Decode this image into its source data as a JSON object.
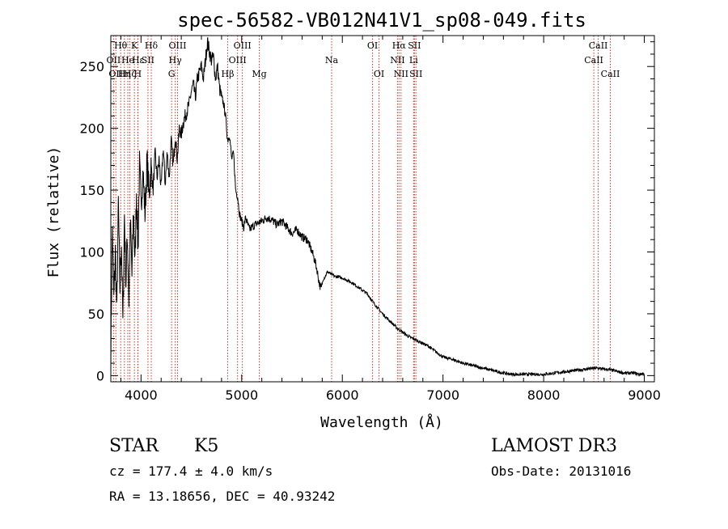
{
  "chart_data": {
    "type": "line",
    "title": "spec-56582-VB012N41V1_sp08-049.fits",
    "xlabel": "Wavelength (Å)",
    "ylabel": "Flux (relative)",
    "xlim": [
      3700,
      9100
    ],
    "ylim": [
      -5,
      275
    ],
    "x_ticks": [
      {
        "value": 4000,
        "label": "4000"
      },
      {
        "value": 5000,
        "label": "5000"
      },
      {
        "value": 6000,
        "label": "6000"
      },
      {
        "value": 7000,
        "label": "7000"
      },
      {
        "value": 8000,
        "label": "8000"
      },
      {
        "value": 9000,
        "label": "9000"
      }
    ],
    "y_ticks": [
      {
        "value": 0,
        "label": "0"
      },
      {
        "value": 50,
        "label": "50"
      },
      {
        "value": 100,
        "label": "100"
      },
      {
        "value": 150,
        "label": "150"
      },
      {
        "value": 200,
        "label": "200"
      },
      {
        "value": 250,
        "label": "250"
      }
    ],
    "series": [
      {
        "name": "flux",
        "x": [
          3700,
          3715,
          3730,
          3745,
          3760,
          3775,
          3790,
          3805,
          3820,
          3835,
          3850,
          3865,
          3880,
          3895,
          3910,
          3925,
          3940,
          3955,
          3970,
          3985,
          4000,
          4020,
          4040,
          4060,
          4080,
          4100,
          4120,
          4140,
          4160,
          4180,
          4200,
          4220,
          4240,
          4260,
          4280,
          4300,
          4320,
          4340,
          4360,
          4380,
          4400,
          4420,
          4440,
          4460,
          4480,
          4500,
          4520,
          4540,
          4560,
          4580,
          4600,
          4620,
          4640,
          4660,
          4680,
          4700,
          4720,
          4740,
          4760,
          4780,
          4800,
          4820,
          4840,
          4860,
          4880,
          4900,
          4920,
          4940,
          4960,
          4980,
          5000,
          5020,
          5040,
          5060,
          5080,
          5100,
          5150,
          5200,
          5250,
          5300,
          5350,
          5400,
          5450,
          5500,
          5550,
          5600,
          5650,
          5700,
          5730,
          5750,
          5770,
          5790,
          5810,
          5830,
          5850,
          5870,
          5890,
          5910,
          5930,
          5960,
          6000,
          6050,
          6100,
          6150,
          6200,
          6250,
          6300,
          6350,
          6400,
          6450,
          6500,
          6550,
          6600,
          6650,
          6700,
          6750,
          6800,
          6850,
          6900,
          6950,
          7000,
          7100,
          7200,
          7300,
          7400,
          7500,
          7600,
          7700,
          7800,
          7900,
          8000,
          8100,
          8200,
          8300,
          8400,
          8500,
          8550,
          8600,
          8650,
          8700,
          8750,
          8800,
          8850,
          8900,
          8950,
          9000
        ],
        "y": [
          15,
          120,
          60,
          100,
          50,
          140,
          70,
          110,
          40,
          130,
          75,
          115,
          60,
          125,
          80,
          135,
          90,
          150,
          100,
          170,
          140,
          165,
          130,
          175,
          145,
          170,
          150,
          180,
          160,
          175,
          150,
          185,
          155,
          180,
          160,
          190,
          170,
          195,
          175,
          200,
          195,
          205,
          210,
          215,
          220,
          230,
          235,
          225,
          240,
          245,
          250,
          240,
          255,
          270,
          262,
          255,
          258,
          240,
          250,
          232,
          225,
          220,
          210,
          190,
          195,
          175,
          180,
          150,
          145,
          130,
          125,
          120,
          128,
          122,
          118,
          120,
          123,
          125,
          128,
          126,
          122,
          125,
          120,
          115,
          118,
          112,
          110,
          100,
          92,
          85,
          75,
          70,
          78,
          80,
          84,
          83,
          82,
          81,
          80,
          80,
          79,
          77,
          75,
          72,
          69,
          66,
          60,
          55,
          50,
          46,
          42,
          38,
          35,
          32,
          30,
          28,
          26,
          24,
          21,
          18,
          15,
          13,
          10,
          8,
          6,
          4,
          2,
          1,
          1,
          1,
          1,
          2,
          3,
          4,
          5,
          6,
          6,
          5,
          5,
          4,
          3,
          2,
          2,
          2,
          1,
          2
        ]
      }
    ],
    "lines": [
      {
        "wavelength": 3727,
        "label": "OII",
        "row": 2
      },
      {
        "wavelength": 3750,
        "label": "OII",
        "row": 3
      },
      {
        "wavelength": 3798,
        "label": "Hθ",
        "row": 1
      },
      {
        "wavelength": 3835,
        "label": "Hη",
        "row": 3
      },
      {
        "wavelength": 3869,
        "label": "He",
        "row": 2
      },
      {
        "wavelength": 3889,
        "label": "Hζ",
        "row": 3
      },
      {
        "wavelength": 3934,
        "label": "K",
        "row": 1
      },
      {
        "wavelength": 3968,
        "label": "H",
        "row": 3
      },
      {
        "wavelength": 3970,
        "label": "Hε",
        "row": 2
      },
      {
        "wavelength": 4069,
        "label": "SII",
        "row": 2
      },
      {
        "wavelength": 4102,
        "label": "Hδ",
        "row": 1
      },
      {
        "wavelength": 4304,
        "label": "G",
        "row": 3
      },
      {
        "wavelength": 4340,
        "label": "Hγ",
        "row": 2
      },
      {
        "wavelength": 4363,
        "label": "OIII",
        "row": 1
      },
      {
        "wavelength": 4861,
        "label": "Hβ",
        "row": 3
      },
      {
        "wavelength": 4959,
        "label": "OIII",
        "row": 2
      },
      {
        "wavelength": 5007,
        "label": "OIII",
        "row": 1
      },
      {
        "wavelength": 5175,
        "label": "Mg",
        "row": 3
      },
      {
        "wavelength": 5894,
        "label": "Na",
        "row": 2
      },
      {
        "wavelength": 6300,
        "label": "OI",
        "row": 1
      },
      {
        "wavelength": 6364,
        "label": "OI",
        "row": 3
      },
      {
        "wavelength": 6548,
        "label": "NII",
        "row": 2
      },
      {
        "wavelength": 6563,
        "label": "Hα",
        "row": 1
      },
      {
        "wavelength": 6583,
        "label": "NII",
        "row": 3
      },
      {
        "wavelength": 6708,
        "label": "Li",
        "row": 2
      },
      {
        "wavelength": 6716,
        "label": "SII",
        "row": 1
      },
      {
        "wavelength": 6731,
        "label": "SII",
        "row": 3
      },
      {
        "wavelength": 8498,
        "label": "CaII",
        "row": 2
      },
      {
        "wavelength": 8542,
        "label": "CaII",
        "row": 1
      },
      {
        "wavelength": 8662,
        "label": "CaII",
        "row": 3
      }
    ],
    "line_color": "#c0392b",
    "curve_color": "#000000"
  },
  "footer": {
    "object_class": "STAR",
    "subclass": "K5",
    "survey": "LAMOST DR3",
    "cz": "cz = 177.4 ± 4.0 km/s",
    "obs_date": "Obs-Date: 20131016",
    "coords": "RA =  13.18656, DEC =  40.93242"
  }
}
